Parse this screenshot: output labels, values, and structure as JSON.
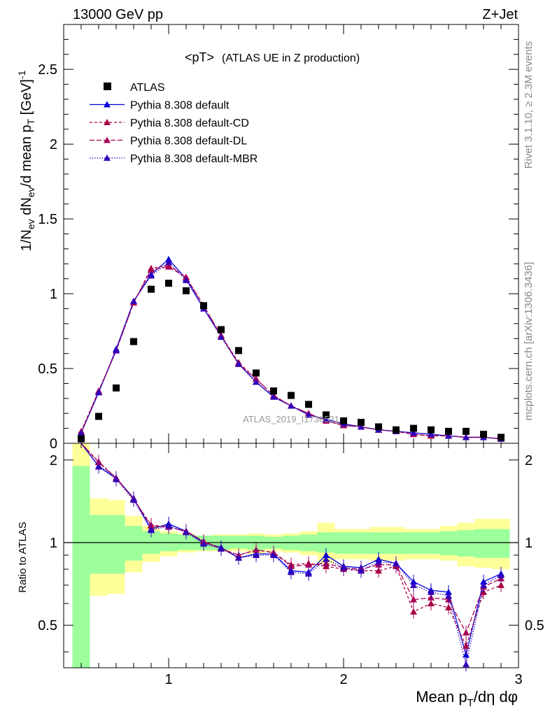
{
  "header": {
    "energy": "13000 GeV pp",
    "process": "Z+Jet",
    "rivet": "Rivet 3.1.10, ≥ 2.3M events",
    "mcplots": "mcplots.cern.ch [arXiv:1306.3436]",
    "analysis": "ATLAS_2019_I1736531"
  },
  "legend": {
    "title": "<pT>",
    "subtitle": "(ATLAS UE in Z production)",
    "items": [
      {
        "label": "ATLAS",
        "color": "#000000",
        "marker": "square",
        "dash": ""
      },
      {
        "label": "Pythia 8.308 default",
        "color": "#0000dd",
        "marker": "triangle",
        "dash": ""
      },
      {
        "label": "Pythia 8.308 default-CD",
        "color": "#aa0044",
        "marker": "triangle",
        "dash": "4,3"
      },
      {
        "label": "Pythia 8.308 default-DL",
        "color": "#aa0055",
        "marker": "triangle",
        "dash": "7,3"
      },
      {
        "label": "Pythia 8.308 default-MBR",
        "color": "#3300bb",
        "marker": "triangle",
        "dash": "1.5,2"
      }
    ]
  },
  "chart_data": {
    "type": "scatter",
    "xlabel": "Mean p_T/dη dφ",
    "ylabel": "1/N_ev dN_ev/d mean p_T [GeV]^-1",
    "ratio_ylabel": "Ratio to ATLAS",
    "xlim": [
      0.4,
      3.0
    ],
    "ylim": [
      0,
      2.8
    ],
    "ratio_ylim": [
      0.35,
      2.3
    ],
    "x_ticks": [
      1,
      2,
      3
    ],
    "y_ticks": [
      0,
      0.5,
      1,
      1.5,
      2,
      2.5
    ],
    "ratio_ticks": [
      0.5,
      1,
      2
    ],
    "x": [
      0.5,
      0.6,
      0.7,
      0.8,
      0.9,
      1.0,
      1.1,
      1.2,
      1.3,
      1.4,
      1.5,
      1.6,
      1.7,
      1.8,
      1.9,
      2.0,
      2.1,
      2.2,
      2.3,
      2.4,
      2.5,
      2.6,
      2.7,
      2.8,
      2.9
    ],
    "data": {
      "name": "ATLAS",
      "values": [
        0.03,
        0.18,
        0.37,
        0.68,
        1.03,
        1.07,
        1.02,
        0.92,
        0.76,
        0.62,
        0.47,
        0.35,
        0.32,
        0.26,
        0.19,
        0.15,
        0.14,
        0.11,
        0.09,
        0.1,
        0.09,
        0.08,
        0.08,
        0.06,
        0.04
      ]
    },
    "series": [
      {
        "name": "Pythia 8.308 default",
        "values": [
          0.07,
          0.34,
          0.63,
          0.95,
          1.13,
          1.23,
          1.1,
          0.9,
          0.72,
          0.53,
          0.41,
          0.31,
          0.25,
          0.19,
          0.16,
          0.13,
          0.11,
          0.09,
          0.08,
          0.07,
          0.06,
          0.05,
          0.04,
          0.04,
          0.03
        ]
      },
      {
        "name": "Pythia 8.308 default-CD",
        "values": [
          0.08,
          0.35,
          0.62,
          0.94,
          1.17,
          1.19,
          1.11,
          0.92,
          0.72,
          0.54,
          0.43,
          0.32,
          0.25,
          0.2,
          0.15,
          0.12,
          0.11,
          0.09,
          0.08,
          0.06,
          0.05,
          0.05,
          0.04,
          0.04,
          0.03
        ]
      },
      {
        "name": "Pythia 8.308 default-DL",
        "values": [
          0.07,
          0.35,
          0.62,
          0.94,
          1.16,
          1.18,
          1.11,
          0.92,
          0.72,
          0.53,
          0.43,
          0.32,
          0.25,
          0.2,
          0.15,
          0.12,
          0.11,
          0.09,
          0.08,
          0.06,
          0.05,
          0.05,
          0.04,
          0.04,
          0.03
        ]
      },
      {
        "name": "Pythia 8.308 default-MBR",
        "values": [
          0.07,
          0.34,
          0.62,
          0.95,
          1.12,
          1.21,
          1.09,
          0.9,
          0.71,
          0.53,
          0.41,
          0.31,
          0.25,
          0.19,
          0.16,
          0.13,
          0.11,
          0.09,
          0.08,
          0.07,
          0.06,
          0.05,
          0.04,
          0.04,
          0.03
        ]
      }
    ],
    "ratio_series": [
      {
        "name": "Pythia 8.308 default",
        "values": [
          2.5,
          1.9,
          1.72,
          1.45,
          1.12,
          1.17,
          1.1,
          1.0,
          0.96,
          0.88,
          0.91,
          0.91,
          0.79,
          0.78,
          0.9,
          0.82,
          0.81,
          0.87,
          0.84,
          0.72,
          0.67,
          0.66,
          0.39,
          0.72,
          0.77
        ]
      },
      {
        "name": "Pythia 8.308 default-CD",
        "values": [
          2.5,
          1.97,
          1.72,
          1.44,
          1.16,
          1.14,
          1.1,
          1.01,
          0.95,
          0.9,
          0.94,
          0.92,
          0.83,
          0.84,
          0.82,
          0.8,
          0.79,
          0.79,
          0.82,
          0.56,
          0.6,
          0.58,
          0.42,
          0.66,
          0.7
        ]
      },
      {
        "name": "Pythia 8.308 default-DL",
        "values": [
          2.5,
          1.96,
          1.72,
          1.44,
          1.15,
          1.14,
          1.1,
          1.01,
          0.95,
          0.9,
          0.94,
          0.92,
          0.82,
          0.83,
          0.84,
          0.81,
          0.8,
          0.83,
          0.83,
          0.62,
          0.63,
          0.62,
          0.47,
          0.69,
          0.74
        ]
      },
      {
        "name": "Pythia 8.308 default-MBR",
        "values": [
          2.5,
          1.89,
          1.7,
          1.43,
          1.11,
          1.15,
          1.09,
          0.99,
          0.95,
          0.88,
          0.9,
          0.9,
          0.78,
          0.77,
          0.87,
          0.81,
          0.79,
          0.85,
          0.84,
          0.7,
          0.66,
          0.64,
          0.36,
          0.7,
          0.76
        ]
      }
    ],
    "ratio_band_inner": {
      "color": "#9cff9c",
      "low": [
        0.3,
        0.77,
        0.77,
        0.86,
        0.91,
        0.93,
        0.94,
        0.94,
        0.94,
        0.95,
        0.94,
        0.95,
        0.94,
        0.93,
        0.92,
        0.91,
        0.91,
        0.91,
        0.91,
        0.91,
        0.91,
        0.9,
        0.89,
        0.88,
        0.88
      ],
      "high": [
        1.9,
        1.26,
        1.26,
        1.15,
        1.1,
        1.08,
        1.07,
        1.06,
        1.06,
        1.06,
        1.06,
        1.05,
        1.06,
        1.07,
        1.09,
        1.09,
        1.09,
        1.09,
        1.09,
        1.09,
        1.09,
        1.1,
        1.11,
        1.12,
        1.12
      ]
    },
    "ratio_band_outer": {
      "color": "#ffff99",
      "low": [
        0.3,
        0.64,
        0.65,
        0.78,
        0.85,
        0.89,
        0.92,
        0.93,
        0.93,
        0.93,
        0.91,
        0.93,
        0.92,
        0.9,
        0.84,
        0.87,
        0.87,
        0.86,
        0.86,
        0.87,
        0.87,
        0.86,
        0.82,
        0.81,
        0.8
      ],
      "high": [
        2.35,
        1.45,
        1.43,
        1.25,
        1.15,
        1.1,
        1.08,
        1.06,
        1.07,
        1.07,
        1.08,
        1.07,
        1.08,
        1.1,
        1.18,
        1.12,
        1.12,
        1.14,
        1.14,
        1.12,
        1.12,
        1.15,
        1.18,
        1.22,
        1.22
      ]
    }
  }
}
